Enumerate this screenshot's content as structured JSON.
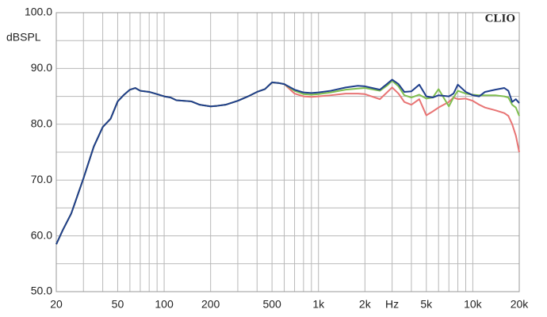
{
  "chart_data": {
    "type": "line",
    "annotation": "CLIO",
    "y_label": "dBSPL",
    "log_x": true,
    "grid": true,
    "x": [
      20,
      22,
      25,
      30,
      35,
      40,
      45,
      50,
      55,
      60,
      65,
      70,
      80,
      90,
      100,
      110,
      120,
      150,
      170,
      200,
      220,
      250,
      300,
      350,
      400,
      450,
      500,
      550,
      600,
      700,
      800,
      900,
      1000,
      1200,
      1500,
      1800,
      2000,
      2500,
      2800,
      3000,
      3300,
      3600,
      4000,
      4500,
      5000,
      5500,
      6000,
      7000,
      7500,
      8000,
      9000,
      10000,
      11000,
      12000,
      14000,
      16000,
      17000,
      18000,
      19000,
      20000
    ],
    "series": [
      {
        "name": "red",
        "color": "#e87474",
        "values": [
          58.5,
          61,
          64,
          70.3,
          76,
          79.5,
          81,
          84.1,
          85.3,
          86.2,
          86.5,
          86,
          85.8,
          85.4,
          85,
          84.8,
          84.3,
          84.1,
          83.5,
          83.2,
          83.3,
          83.5,
          84.2,
          85,
          85.8,
          86.3,
          87.5,
          87.4,
          87.2,
          85.5,
          85,
          84.9,
          85,
          85.2,
          85.5,
          85.5,
          85.4,
          84.5,
          85.8,
          86.6,
          85.5,
          84,
          83.5,
          84.5,
          81.6,
          82.3,
          83,
          84,
          84.8,
          84.5,
          84.6,
          84.2,
          83.5,
          83,
          82.5,
          82,
          81.5,
          80,
          78,
          75
        ]
      },
      {
        "name": "green",
        "color": "#80bf50",
        "values": [
          58.5,
          61,
          64,
          70.3,
          76,
          79.5,
          81,
          84.1,
          85.3,
          86.2,
          86.5,
          86,
          85.8,
          85.4,
          85,
          84.8,
          84.3,
          84.1,
          83.5,
          83.2,
          83.3,
          83.5,
          84.2,
          85,
          85.8,
          86.3,
          87.5,
          87.4,
          87.2,
          86,
          85.4,
          85.3,
          85.4,
          85.7,
          86.2,
          86.4,
          86.5,
          86,
          87,
          87.8,
          86.8,
          85.2,
          84.8,
          85.3,
          84.6,
          84.8,
          86.3,
          83.2,
          84.8,
          86,
          85.5,
          85.3,
          85.2,
          85.2,
          85.2,
          85,
          84.8,
          83.5,
          83,
          81.5
        ]
      },
      {
        "name": "blue",
        "color": "#1f3f8c",
        "values": [
          58.5,
          61,
          64,
          70.3,
          76,
          79.5,
          81,
          84.1,
          85.3,
          86.2,
          86.5,
          86,
          85.8,
          85.4,
          85,
          84.8,
          84.3,
          84.1,
          83.5,
          83.2,
          83.3,
          83.5,
          84.2,
          85,
          85.8,
          86.3,
          87.5,
          87.4,
          87.2,
          86.2,
          85.7,
          85.6,
          85.7,
          86,
          86.6,
          86.9,
          86.8,
          86.2,
          87.3,
          88,
          87.2,
          85.8,
          85.9,
          87.1,
          85,
          84.8,
          85.2,
          85,
          85.5,
          87.1,
          85.8,
          85.2,
          85,
          85.8,
          86.2,
          86.5,
          86,
          84,
          84.5,
          83.8
        ]
      }
    ],
    "xlim": [
      20,
      20000
    ],
    "ylim": [
      50,
      100
    ],
    "xticks": [
      20,
      50,
      100,
      200,
      500,
      {
        "value": 1000,
        "label": "1k"
      },
      {
        "value": 2000,
        "label": "2k"
      },
      {
        "value": 3000,
        "label": "Hz"
      },
      {
        "value": 5000,
        "label": "5k"
      },
      {
        "value": 10000,
        "label": "10k"
      },
      {
        "value": 20000,
        "label": "20k"
      }
    ],
    "xminor": [
      30,
      40,
      60,
      70,
      80,
      90,
      300,
      400,
      600,
      700,
      800,
      900,
      4000,
      6000,
      7000,
      8000,
      9000
    ],
    "yticks": [
      {
        "value": 50,
        "label": "50.0"
      },
      {
        "value": 60,
        "label": "60.0"
      },
      {
        "value": 70,
        "label": "70.0"
      },
      {
        "value": 80,
        "label": "80.0"
      },
      {
        "value": 90,
        "label": "90.0"
      },
      {
        "value": 100,
        "label": "100.0"
      }
    ],
    "yminor": [
      55,
      65,
      75,
      85,
      95
    ]
  }
}
